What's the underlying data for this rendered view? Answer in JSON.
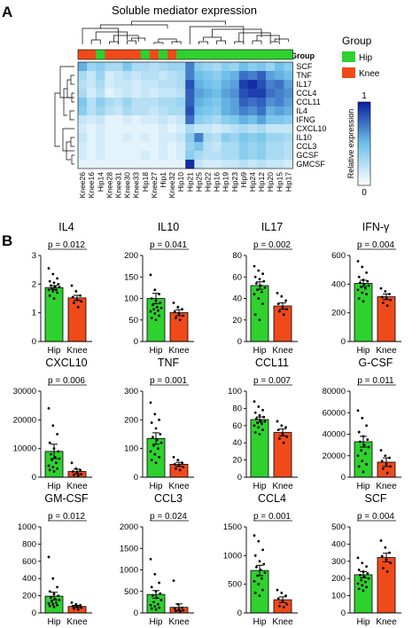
{
  "panel_a": {
    "label": "A",
    "title": "Soluble mediator expression",
    "group_label": "Group",
    "legend": {
      "title": "Group",
      "items": [
        {
          "label": "Hip",
          "color": "#2ed12e"
        },
        {
          "label": "Knee",
          "color": "#f04a1a"
        }
      ]
    },
    "colorbar": {
      "label": "Relative expression",
      "max_label": "1",
      "min_label": "0",
      "color_low": "#ffffff",
      "color_high": "#0a1f9e"
    }
  },
  "panel_b": {
    "label": "B"
  },
  "colors": {
    "hip": "#2ed12e",
    "knee": "#f04a1a"
  },
  "chart_data": [
    {
      "type": "heatmap",
      "columns": [
        "Knee26",
        "Knee16",
        "Hip14",
        "Knee28",
        "Knee31",
        "Knee30",
        "Knee33",
        "Hip18",
        "Knee27",
        "Hip1",
        "Knee32",
        "Hip10",
        "Hip21",
        "Hip25",
        "Hip22",
        "Hip16",
        "Hip19",
        "Hip23",
        "Hip9",
        "Hip24",
        "Hip12",
        "Hip20",
        "Hip15",
        "Hip17"
      ],
      "column_groups": [
        "Knee",
        "Knee",
        "Hip",
        "Knee",
        "Knee",
        "Knee",
        "Knee",
        "Hip",
        "Knee",
        "Hip",
        "Knee",
        "Hip",
        "Hip",
        "Hip",
        "Hip",
        "Hip",
        "Hip",
        "Hip",
        "Hip",
        "Hip",
        "Hip",
        "Hip",
        "Hip",
        "Hip"
      ],
      "rows": [
        "SCF",
        "TNF",
        "IL17",
        "CCL4",
        "CCL11",
        "IL4",
        "IFNG",
        "CXCL10",
        "IL10",
        "CCL3",
        "GCSF",
        "GMCSF"
      ],
      "values": [
        [
          0.55,
          0.35,
          0.4,
          0.3,
          0.3,
          0.45,
          0.3,
          0.3,
          0.25,
          0.3,
          0.35,
          0.35,
          0.7,
          0.4,
          0.35,
          0.3,
          0.4,
          0.35,
          0.5,
          0.4,
          0.45,
          0.35,
          0.5,
          0.4
        ],
        [
          0.3,
          0.2,
          0.35,
          0.15,
          0.2,
          0.25,
          0.2,
          0.25,
          0.25,
          0.2,
          0.25,
          0.3,
          0.7,
          0.5,
          0.45,
          0.4,
          0.5,
          0.55,
          0.75,
          0.7,
          0.8,
          0.6,
          0.55,
          0.5
        ],
        [
          0.25,
          0.2,
          0.3,
          0.15,
          0.2,
          0.2,
          0.15,
          0.2,
          0.2,
          0.25,
          0.25,
          0.3,
          0.85,
          0.55,
          0.5,
          0.45,
          0.55,
          0.6,
          0.9,
          0.95,
          0.85,
          0.7,
          0.75,
          0.6
        ],
        [
          0.3,
          0.15,
          0.25,
          0.1,
          0.15,
          0.2,
          0.15,
          0.2,
          0.15,
          0.2,
          0.2,
          0.25,
          0.8,
          0.6,
          0.55,
          0.5,
          0.6,
          0.65,
          0.85,
          0.9,
          0.9,
          0.75,
          0.7,
          0.65
        ],
        [
          0.45,
          0.25,
          0.4,
          0.3,
          0.25,
          0.35,
          0.25,
          0.25,
          0.25,
          0.3,
          0.3,
          0.35,
          0.8,
          0.55,
          0.5,
          0.45,
          0.55,
          0.6,
          0.8,
          0.75,
          0.8,
          0.65,
          0.7,
          0.6
        ],
        [
          0.4,
          0.25,
          0.35,
          0.25,
          0.2,
          0.3,
          0.25,
          0.25,
          0.2,
          0.25,
          0.3,
          0.3,
          0.85,
          0.5,
          0.45,
          0.4,
          0.55,
          0.6,
          0.7,
          0.65,
          0.75,
          0.55,
          0.6,
          0.55
        ],
        [
          0.2,
          0.15,
          0.2,
          0.1,
          0.1,
          0.15,
          0.1,
          0.15,
          0.15,
          0.2,
          0.15,
          0.2,
          0.75,
          0.4,
          0.35,
          0.3,
          0.4,
          0.45,
          0.55,
          0.5,
          0.6,
          0.45,
          0.45,
          0.4
        ],
        [
          0.15,
          0.1,
          0.15,
          0.1,
          0.1,
          0.1,
          0.1,
          0.1,
          0.1,
          0.15,
          0.1,
          0.15,
          0.3,
          0.2,
          0.2,
          0.15,
          0.2,
          0.25,
          0.3,
          0.25,
          0.3,
          0.2,
          0.2,
          0.2
        ],
        [
          0.2,
          0.1,
          0.15,
          0.1,
          0.1,
          0.15,
          0.1,
          0.15,
          0.1,
          0.15,
          0.15,
          0.2,
          0.4,
          0.7,
          0.3,
          0.25,
          0.4,
          0.35,
          0.45,
          0.4,
          0.45,
          0.35,
          0.35,
          0.3
        ],
        [
          0.15,
          0.1,
          0.15,
          0.1,
          0.1,
          0.1,
          0.1,
          0.1,
          0.1,
          0.15,
          0.1,
          0.15,
          0.35,
          0.45,
          0.25,
          0.2,
          0.3,
          0.3,
          0.4,
          0.35,
          0.4,
          0.3,
          0.3,
          0.25
        ],
        [
          0.15,
          0.1,
          0.15,
          0.1,
          0.1,
          0.1,
          0.1,
          0.15,
          0.1,
          0.15,
          0.1,
          0.15,
          0.4,
          0.3,
          0.25,
          0.25,
          0.3,
          0.3,
          0.4,
          0.35,
          0.4,
          0.3,
          0.3,
          0.25
        ],
        [
          0.1,
          0.1,
          0.1,
          0.1,
          0.1,
          0.1,
          0.1,
          0.1,
          0.1,
          0.1,
          0.1,
          0.1,
          0.95,
          0.2,
          0.15,
          0.15,
          0.2,
          0.2,
          0.25,
          0.2,
          0.25,
          0.2,
          0.2,
          0.15
        ]
      ],
      "range": [
        0,
        1
      ]
    },
    {
      "type": "bar",
      "title": "IL4",
      "categories": [
        "Hip",
        "Knee"
      ],
      "values": [
        1.88,
        1.52
      ],
      "errors": [
        0.07,
        0.09
      ],
      "pvalue": "p = 0.012",
      "ylim": [
        0,
        3
      ],
      "yticks": [
        0,
        1,
        2,
        3
      ],
      "yticklabels": [
        "0",
        "1",
        "2",
        "3"
      ],
      "points": [
        [
          2.55,
          2.35,
          2.2,
          2.1,
          2.05,
          2.0,
          1.95,
          1.9,
          1.9,
          1.85,
          1.8,
          1.8,
          1.75,
          1.7,
          1.6,
          1.5
        ],
        [
          1.95,
          1.75,
          1.6,
          1.55,
          1.45,
          1.4,
          1.35,
          1.2
        ]
      ]
    },
    {
      "type": "bar",
      "title": "IL10",
      "categories": [
        "Hip",
        "Knee"
      ],
      "values": [
        100,
        67
      ],
      "errors": [
        12,
        7
      ],
      "pvalue": "p = 0.041",
      "ylim": [
        0,
        200
      ],
      "yticks": [
        0,
        50,
        100,
        150,
        200
      ],
      "yticklabels": [
        "0",
        "50",
        "100",
        "150",
        "200"
      ],
      "points": [
        [
          155,
          120,
          110,
          100,
          95,
          90,
          85,
          80,
          78,
          75,
          72,
          70,
          65,
          60,
          55,
          50
        ],
        [
          90,
          80,
          75,
          70,
          65,
          60,
          55,
          50
        ]
      ]
    },
    {
      "type": "bar",
      "title": "IL17",
      "categories": [
        "Hip",
        "Knee"
      ],
      "values": [
        52,
        33
      ],
      "errors": [
        3.5,
        3
      ],
      "pvalue": "p = 0.002",
      "ylim": [
        0,
        80
      ],
      "yticks": [
        0,
        20,
        40,
        60,
        80
      ],
      "yticklabels": [
        "0",
        "20",
        "40",
        "60",
        "80"
      ],
      "points": [
        [
          70,
          66,
          63,
          60,
          58,
          56,
          54,
          52,
          50,
          48,
          46,
          44,
          40,
          35,
          25,
          20
        ],
        [
          45,
          42,
          38,
          35,
          32,
          30,
          28,
          25
        ]
      ]
    },
    {
      "type": "bar",
      "title": "IFN-γ",
      "categories": [
        "Hip",
        "Knee"
      ],
      "values": [
        405,
        312
      ],
      "errors": [
        22,
        20
      ],
      "pvalue": "p = 0.004",
      "ylim": [
        0,
        600
      ],
      "yticks": [
        0,
        200,
        400,
        600
      ],
      "yticklabels": [
        "0",
        "200",
        "400",
        "600"
      ],
      "points": [
        [
          560,
          520,
          480,
          450,
          430,
          420,
          410,
          400,
          390,
          380,
          370,
          360,
          340,
          330,
          300,
          280
        ],
        [
          370,
          350,
          330,
          310,
          300,
          290,
          270,
          250
        ]
      ]
    },
    {
      "type": "bar",
      "title": "CXCL10",
      "categories": [
        "Hip",
        "Knee"
      ],
      "values": [
        9000,
        2000
      ],
      "errors": [
        2500,
        800
      ],
      "pvalue": "p = 0.006",
      "ylim": [
        0,
        30000
      ],
      "yticks": [
        0,
        10000,
        20000,
        30000
      ],
      "yticklabels": [
        "0",
        "10000",
        "20000",
        "30000"
      ],
      "points": [
        [
          24000,
          18000,
          15000,
          12000,
          10000,
          9000,
          8000,
          7000,
          6500,
          6000,
          5000,
          4000,
          3500,
          3000,
          2500,
          2000
        ],
        [
          5000,
          3000,
          2500,
          2000,
          1500,
          1000,
          800,
          500
        ]
      ]
    },
    {
      "type": "bar",
      "title": "TNF",
      "categories": [
        "Hip",
        "Knee"
      ],
      "values": [
        135,
        45
      ],
      "errors": [
        20,
        7
      ],
      "pvalue": "p = 0.001",
      "ylim": [
        0,
        300
      ],
      "yticks": [
        0,
        100,
        200,
        300
      ],
      "yticklabels": [
        "0",
        "100",
        "200",
        "300"
      ],
      "points": [
        [
          260,
          220,
          200,
          190,
          170,
          150,
          140,
          130,
          120,
          110,
          100,
          90,
          80,
          70,
          60,
          50
        ],
        [
          70,
          60,
          50,
          45,
          40,
          35,
          30,
          25
        ]
      ]
    },
    {
      "type": "bar",
      "title": "CCL11",
      "categories": [
        "Hip",
        "Knee"
      ],
      "values": [
        67,
        52
      ],
      "errors": [
        3,
        4
      ],
      "pvalue": "p = 0.007",
      "ylim": [
        0,
        100
      ],
      "yticks": [
        0,
        20,
        40,
        60,
        80,
        100
      ],
      "yticklabels": [
        "0",
        "20",
        "40",
        "60",
        "80",
        "100"
      ],
      "points": [
        [
          88,
          82,
          78,
          75,
          72,
          70,
          68,
          66,
          65,
          63,
          62,
          60,
          58,
          55,
          52,
          50
        ],
        [
          65,
          60,
          58,
          55,
          50,
          47,
          45,
          40
        ]
      ]
    },
    {
      "type": "bar",
      "title": "G-CSF",
      "categories": [
        "Hip",
        "Knee"
      ],
      "values": [
        33000,
        14000
      ],
      "errors": [
        5000,
        4000
      ],
      "pvalue": "p = 0.011",
      "ylim": [
        0,
        80000
      ],
      "yticks": [
        0,
        20000,
        40000,
        60000,
        80000
      ],
      "yticklabels": [
        "0",
        "20000",
        "40000",
        "60000",
        "80000"
      ],
      "points": [
        [
          62000,
          55000,
          48000,
          42000,
          38000,
          35000,
          33000,
          30000,
          28000,
          25000,
          22000,
          20000,
          15000,
          12000,
          10000,
          5000
        ],
        [
          25000,
          20000,
          18000,
          15000,
          12000,
          10000,
          8000,
          4000
        ]
      ]
    },
    {
      "type": "bar",
      "title": "GM-CSF",
      "categories": [
        "Hip",
        "Knee"
      ],
      "values": [
        195,
        75
      ],
      "errors": [
        45,
        12
      ],
      "pvalue": "p = 0.012",
      "ylim": [
        0,
        1000
      ],
      "yticks": [
        0,
        200,
        400,
        600,
        800,
        1000
      ],
      "yticklabels": [
        "0",
        "200",
        "400",
        "600",
        "800",
        "1000"
      ],
      "points": [
        [
          650,
          400,
          300,
          250,
          220,
          200,
          180,
          160,
          150,
          130,
          120,
          110,
          100,
          90,
          80,
          70
        ],
        [
          120,
          100,
          90,
          80,
          70,
          60,
          50,
          40
        ]
      ]
    },
    {
      "type": "bar",
      "title": "CCL3",
      "categories": [
        "Hip",
        "Knee"
      ],
      "values": [
        430,
        130
      ],
      "errors": [
        90,
        80
      ],
      "pvalue": "p = 0.024",
      "ylim": [
        0,
        2000
      ],
      "yticks": [
        0,
        500,
        1000,
        1500,
        2000
      ],
      "yticklabels": [
        "0",
        "500",
        "1000",
        "1500",
        "2000"
      ],
      "points": [
        [
          1250,
          900,
          700,
          600,
          500,
          450,
          400,
          350,
          300,
          250,
          200,
          180,
          150,
          120,
          100,
          80
        ],
        [
          750,
          200,
          120,
          100,
          80,
          60,
          50,
          40
        ]
      ]
    },
    {
      "type": "bar",
      "title": "CCL4",
      "categories": [
        "Hip",
        "Knee"
      ],
      "values": [
        740,
        230
      ],
      "errors": [
        90,
        50
      ],
      "pvalue": "p = 0.001",
      "ylim": [
        0,
        1500
      ],
      "yticks": [
        0,
        500,
        1000,
        1500
      ],
      "yticklabels": [
        "0",
        "500",
        "1000",
        "1500"
      ],
      "points": [
        [
          1350,
          1250,
          1100,
          1000,
          900,
          850,
          800,
          750,
          700,
          650,
          600,
          550,
          500,
          400,
          350,
          300
        ],
        [
          400,
          350,
          300,
          250,
          200,
          150,
          120,
          100
        ]
      ]
    },
    {
      "type": "bar",
      "title": "SCF",
      "categories": [
        "Hip",
        "Knee"
      ],
      "values": [
        222,
        322
      ],
      "errors": [
        18,
        25
      ],
      "pvalue": "p = 0.004",
      "ylim": [
        0,
        500
      ],
      "yticks": [
        0,
        100,
        200,
        300,
        400,
        500
      ],
      "yticklabels": [
        "0",
        "100",
        "200",
        "300",
        "400",
        "500"
      ],
      "points": [
        [
          320,
          290,
          270,
          250,
          240,
          230,
          220,
          210,
          200,
          190,
          180,
          170,
          160,
          150,
          140,
          130
        ],
        [
          420,
          380,
          350,
          330,
          310,
          290,
          260,
          240
        ]
      ]
    }
  ]
}
